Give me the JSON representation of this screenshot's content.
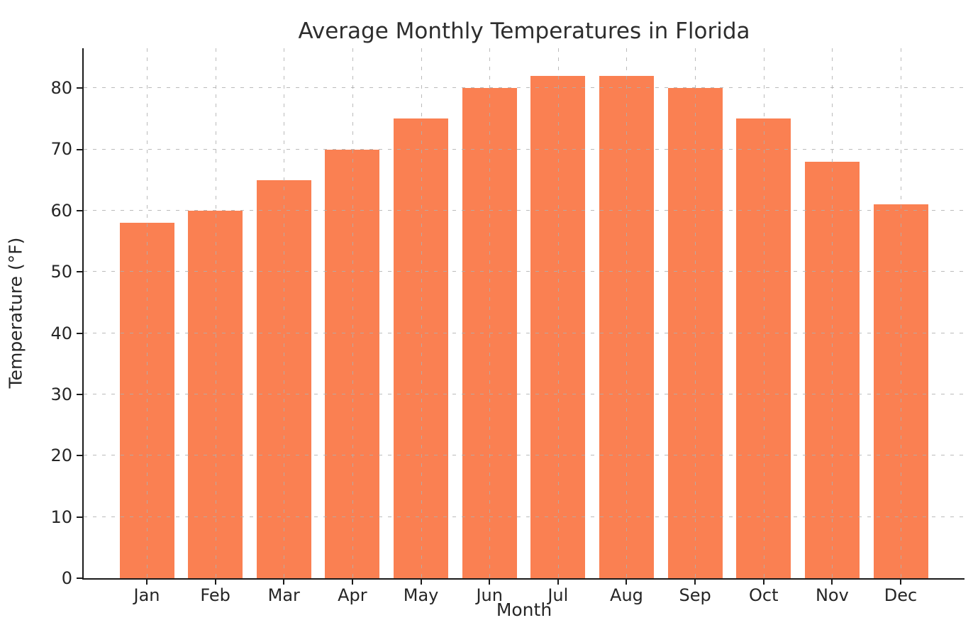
{
  "chart_data": {
    "type": "bar",
    "title": "Average Monthly Temperatures in Florida",
    "xlabel": "Month",
    "ylabel": "Temperature (°F)",
    "categories": [
      "Jan",
      "Feb",
      "Mar",
      "Apr",
      "May",
      "Jun",
      "Jul",
      "Aug",
      "Sep",
      "Oct",
      "Nov",
      "Dec"
    ],
    "values": [
      58,
      60,
      65,
      70,
      75,
      80,
      82,
      82,
      80,
      75,
      68,
      61
    ],
    "yticks": [
      0,
      10,
      20,
      30,
      40,
      50,
      60,
      70,
      80
    ],
    "ylim": [
      0,
      86.5
    ],
    "grid": true,
    "legend": "none",
    "bar_color": "#FA8052",
    "grid_color": "#bdbdbd",
    "text_color": "#262626",
    "background_color": "#ffffff"
  }
}
